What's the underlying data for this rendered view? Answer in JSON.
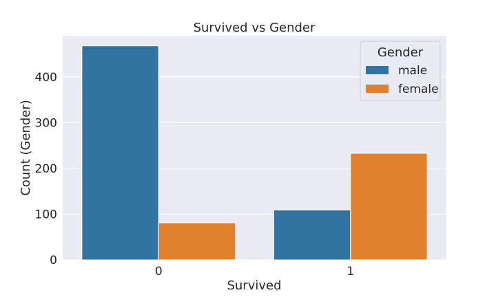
{
  "chart_data": {
    "type": "bar",
    "title": "Survived vs Gender",
    "xlabel": "Survived",
    "ylabel": "Count (Gender)",
    "categories": [
      "0",
      "1"
    ],
    "series": [
      {
        "name": "male",
        "values": [
          468,
          109
        ],
        "color": "#3274a1"
      },
      {
        "name": "female",
        "values": [
          81,
          233
        ],
        "color": "#e1812c"
      }
    ],
    "ylim": [
      0,
      490
    ],
    "yticks": [
      0,
      100,
      200,
      300,
      400
    ],
    "grid": true,
    "legend": {
      "title": "Gender",
      "placement": "top-right"
    },
    "background": "#eaeaf2"
  }
}
